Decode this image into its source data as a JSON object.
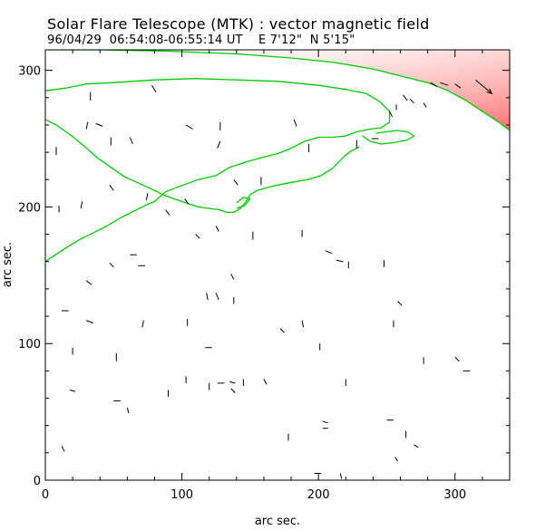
{
  "chart_data": {
    "type": "vector-map",
    "title": "Solar Flare Telescope (MTK) : vector magnetic field",
    "subtitle": "96/04/29  06:54:08-06:55:14 UT    E 7'12\"  N 5'15\"",
    "xlabel": "arc sec.",
    "ylabel": "arc sec.",
    "xlim": [
      0,
      340
    ],
    "ylim": [
      0,
      315
    ],
    "x_ticks": [
      0,
      100,
      200,
      300
    ],
    "y_ticks": [
      0,
      100,
      200,
      300
    ],
    "contour_color": "#00cc00",
    "limb_shade_color": "#ff7070",
    "arrow_color": "#000000",
    "contours": [
      {
        "name": "",
        "points": [
          [
            0,
            285
          ],
          [
            15,
            287
          ],
          [
            30,
            290
          ],
          [
            50,
            291
          ],
          [
            80,
            293
          ],
          [
            110,
            294
          ],
          [
            140,
            293
          ],
          [
            170,
            292
          ],
          [
            200,
            289
          ],
          [
            220,
            286
          ],
          [
            235,
            283
          ],
          [
            245,
            277
          ],
          [
            252,
            270
          ],
          [
            252,
            262
          ],
          [
            246,
            258
          ],
          [
            238,
            257
          ],
          [
            228,
            255
          ],
          [
            220,
            252
          ],
          [
            210,
            251
          ],
          [
            200,
            251
          ],
          [
            190,
            248
          ],
          [
            180,
            243
          ],
          [
            170,
            239
          ],
          [
            158,
            236
          ],
          [
            147,
            233
          ],
          [
            135,
            229
          ],
          [
            125,
            223
          ],
          [
            112,
            220
          ],
          [
            98,
            215
          ],
          [
            88,
            211
          ],
          [
            80,
            204
          ],
          [
            73,
            201
          ],
          [
            65,
            197
          ],
          [
            55,
            192
          ],
          [
            45,
            186
          ],
          [
            35,
            181
          ],
          [
            25,
            176
          ],
          [
            15,
            170
          ],
          [
            6,
            164
          ],
          [
            0,
            160
          ]
        ]
      },
      {
        "name": "",
        "points": [
          [
            232,
            252
          ],
          [
            238,
            248
          ],
          [
            246,
            246
          ],
          [
            255,
            247
          ],
          [
            265,
            249
          ],
          [
            270,
            252
          ],
          [
            265,
            255
          ],
          [
            258,
            256
          ],
          [
            250,
            255
          ],
          [
            242,
            254
          ]
        ]
      },
      {
        "name": "",
        "points": [
          [
            0,
            264
          ],
          [
            8,
            260
          ],
          [
            18,
            253
          ],
          [
            28,
            245
          ],
          [
            38,
            236
          ],
          [
            48,
            229
          ],
          [
            58,
            222
          ],
          [
            67,
            218
          ],
          [
            76,
            214
          ],
          [
            86,
            209
          ],
          [
            94,
            206
          ],
          [
            103,
            203
          ],
          [
            112,
            200
          ],
          [
            119,
            199
          ],
          [
            127,
            198
          ],
          [
            133,
            196
          ],
          [
            138,
            196
          ],
          [
            143,
            199
          ],
          [
            147,
            204
          ],
          [
            150,
            209
          ],
          [
            155,
            212
          ],
          [
            162,
            214
          ],
          [
            170,
            216
          ],
          [
            180,
            218
          ],
          [
            192,
            220
          ],
          [
            202,
            223
          ],
          [
            210,
            228
          ],
          [
            216,
            234
          ],
          [
            220,
            238
          ],
          [
            224,
            241
          ],
          [
            230,
            244
          ]
        ]
      },
      {
        "name": "",
        "points": [
          [
            140,
            199
          ],
          [
            146,
            201
          ],
          [
            150,
            206
          ],
          [
            145,
            207
          ],
          [
            140,
            203
          ]
        ]
      }
    ],
    "limb_boundary": [
      [
        0,
        315
      ],
      [
        40,
        315
      ],
      [
        90,
        314
      ],
      [
        140,
        312
      ],
      [
        180,
        309
      ],
      [
        210,
        306
      ],
      [
        240,
        301
      ],
      [
        260,
        296
      ],
      [
        280,
        291
      ],
      [
        295,
        285
      ],
      [
        308,
        278
      ],
      [
        320,
        270
      ],
      [
        332,
        262
      ],
      [
        340,
        256
      ]
    ],
    "vectors": [
      {
        "x": 33,
        "y": 284,
        "dx": 0,
        "dy": -6
      },
      {
        "x": 78,
        "y": 289,
        "dx": 3,
        "dy": -5
      },
      {
        "x": 103,
        "y": 260,
        "dx": 5,
        "dy": -3
      },
      {
        "x": 31,
        "y": 262,
        "dx": -1,
        "dy": -5
      },
      {
        "x": 37,
        "y": 261,
        "dx": 5,
        "dy": -2
      },
      {
        "x": 8,
        "y": 244,
        "dx": 0,
        "dy": -6
      },
      {
        "x": 48,
        "y": 251,
        "dx": 0,
        "dy": -6
      },
      {
        "x": 62,
        "y": 251,
        "dx": 2,
        "dy": -5
      },
      {
        "x": 128,
        "y": 262,
        "dx": 0,
        "dy": -6
      },
      {
        "x": 128,
        "y": 248,
        "dx": -2,
        "dy": -5
      },
      {
        "x": 182,
        "y": 264,
        "dx": 2,
        "dy": -5
      },
      {
        "x": 193,
        "y": 246,
        "dx": 0,
        "dy": -6
      },
      {
        "x": 228,
        "y": 249,
        "dx": 0,
        "dy": -6
      },
      {
        "x": 239,
        "y": 250,
        "dx": 5,
        "dy": 0
      },
      {
        "x": 252,
        "y": 270,
        "dx": 2,
        "dy": -4
      },
      {
        "x": 262,
        "y": 282,
        "dx": 3,
        "dy": -4
      },
      {
        "x": 267,
        "y": 279,
        "dx": 3,
        "dy": -3
      },
      {
        "x": 277,
        "y": 276,
        "dx": 2,
        "dy": -3
      },
      {
        "x": 257,
        "y": 275,
        "dx": 0,
        "dy": -4
      },
      {
        "x": 282,
        "y": 291,
        "dx": 5,
        "dy": -3
      },
      {
        "x": 300,
        "y": 290,
        "dx": 4,
        "dy": -3
      },
      {
        "x": 289,
        "y": 291,
        "dx": 6,
        "dy": -2
      },
      {
        "x": 315,
        "y": 293,
        "dx": 12,
        "dy": -10
      },
      {
        "x": 10,
        "y": 201,
        "dx": 0,
        "dy": -5
      },
      {
        "x": 27,
        "y": 204,
        "dx": -1,
        "dy": -5
      },
      {
        "x": 47,
        "y": 216,
        "dx": 3,
        "dy": -4
      },
      {
        "x": 75,
        "y": 210,
        "dx": -1,
        "dy": -5
      },
      {
        "x": 102,
        "y": 206,
        "dx": 3,
        "dy": -4
      },
      {
        "x": 88,
        "y": 198,
        "dx": 3,
        "dy": -4
      },
      {
        "x": 138,
        "y": 220,
        "dx": 3,
        "dy": -4
      },
      {
        "x": 158,
        "y": 222,
        "dx": 0,
        "dy": -6
      },
      {
        "x": 125,
        "y": 186,
        "dx": 2,
        "dy": -4
      },
      {
        "x": 110,
        "y": 180,
        "dx": 3,
        "dy": -3
      },
      {
        "x": 152,
        "y": 182,
        "dx": 0,
        "dy": -6
      },
      {
        "x": 188,
        "y": 183,
        "dx": 0,
        "dy": -5
      },
      {
        "x": 205,
        "y": 168,
        "dx": 5,
        "dy": -2
      },
      {
        "x": 213,
        "y": 161,
        "dx": 5,
        "dy": -1
      },
      {
        "x": 222,
        "y": 160,
        "dx": 0,
        "dy": -5
      },
      {
        "x": 248,
        "y": 161,
        "dx": 0,
        "dy": -5
      },
      {
        "x": 62,
        "y": 165,
        "dx": 5,
        "dy": 0
      },
      {
        "x": 68,
        "y": 157,
        "dx": 5,
        "dy": 0
      },
      {
        "x": 47,
        "y": 159,
        "dx": 3,
        "dy": -3
      },
      {
        "x": 30,
        "y": 146,
        "dx": 4,
        "dy": -3
      },
      {
        "x": 136,
        "y": 151,
        "dx": 2,
        "dy": -4
      },
      {
        "x": 118,
        "y": 137,
        "dx": 1,
        "dy": -5
      },
      {
        "x": 125,
        "y": 137,
        "dx": 2,
        "dy": -5
      },
      {
        "x": 138,
        "y": 134,
        "dx": 0,
        "dy": -5
      },
      {
        "x": 258,
        "y": 131,
        "dx": 3,
        "dy": -3
      },
      {
        "x": 12,
        "y": 124,
        "dx": 5,
        "dy": 0
      },
      {
        "x": 30,
        "y": 117,
        "dx": 5,
        "dy": -2
      },
      {
        "x": 72,
        "y": 117,
        "dx": -1,
        "dy": -5
      },
      {
        "x": 104,
        "y": 118,
        "dx": 0,
        "dy": -5
      },
      {
        "x": 172,
        "y": 111,
        "dx": 3,
        "dy": -3
      },
      {
        "x": 188,
        "y": 117,
        "dx": 1,
        "dy": -5
      },
      {
        "x": 255,
        "y": 117,
        "dx": 0,
        "dy": -5
      },
      {
        "x": 20,
        "y": 97,
        "dx": 0,
        "dy": -5
      },
      {
        "x": 117,
        "y": 97,
        "dx": 5,
        "dy": 0
      },
      {
        "x": 201,
        "y": 100,
        "dx": 0,
        "dy": -5
      },
      {
        "x": 277,
        "y": 90,
        "dx": 0,
        "dy": -5
      },
      {
        "x": 300,
        "y": 90,
        "dx": 3,
        "dy": -3
      },
      {
        "x": 306,
        "y": 80,
        "dx": 5,
        "dy": 0
      },
      {
        "x": 52,
        "y": 93,
        "dx": 0,
        "dy": -6
      },
      {
        "x": 18,
        "y": 66,
        "dx": 4,
        "dy": -1
      },
      {
        "x": 90,
        "y": 66,
        "dx": 0,
        "dy": -5
      },
      {
        "x": 103,
        "y": 76,
        "dx": 0,
        "dy": -5
      },
      {
        "x": 120,
        "y": 71,
        "dx": 0,
        "dy": -5
      },
      {
        "x": 126,
        "y": 71,
        "dx": 5,
        "dy": 0
      },
      {
        "x": 135,
        "y": 72,
        "dx": 4,
        "dy": -1
      },
      {
        "x": 145,
        "y": 74,
        "dx": 0,
        "dy": -5
      },
      {
        "x": 160,
        "y": 74,
        "dx": 2,
        "dy": -4
      },
      {
        "x": 220,
        "y": 74,
        "dx": 0,
        "dy": -5
      },
      {
        "x": 50,
        "y": 58,
        "dx": 5,
        "dy": 0
      },
      {
        "x": 60,
        "y": 53,
        "dx": 1,
        "dy": -4
      },
      {
        "x": 136,
        "y": 67,
        "dx": 3,
        "dy": -3
      },
      {
        "x": 203,
        "y": 43,
        "dx": 4,
        "dy": -1
      },
      {
        "x": 203,
        "y": 38,
        "dx": 4,
        "dy": 0
      },
      {
        "x": 250,
        "y": 44,
        "dx": 5,
        "dy": 0
      },
      {
        "x": 178,
        "y": 34,
        "dx": 0,
        "dy": -5
      },
      {
        "x": 264,
        "y": 36,
        "dx": 0,
        "dy": -5
      },
      {
        "x": 12,
        "y": 25,
        "dx": 2,
        "dy": -4
      },
      {
        "x": 270,
        "y": 26,
        "dx": 3,
        "dy": -2
      },
      {
        "x": 256,
        "y": 17,
        "dx": 2,
        "dy": -3
      },
      {
        "x": 197,
        "y": 5,
        "dx": 5,
        "dy": 0
      },
      {
        "x": 216,
        "y": 5,
        "dx": 1,
        "dy": -4
      }
    ]
  }
}
